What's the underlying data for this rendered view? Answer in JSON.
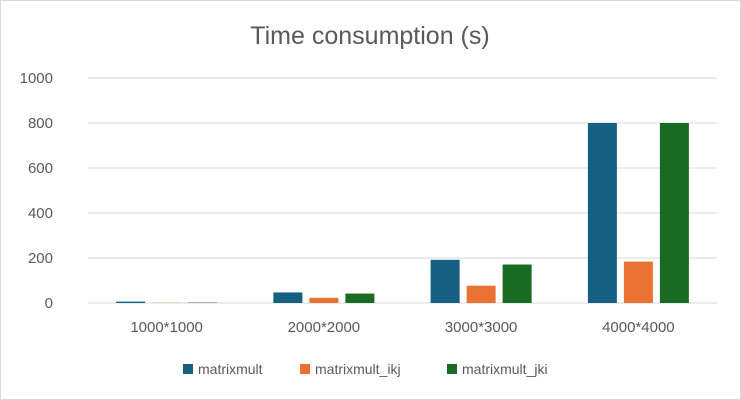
{
  "chart_data": {
    "type": "bar",
    "title": "Time consumption (s)",
    "categories": [
      "1000*1000",
      "2000*2000",
      "3000*3000",
      "4000*4000"
    ],
    "series": [
      {
        "name": "matrixmult",
        "values": [
          6,
          47,
          192,
          800
        ],
        "color": "#156082"
      },
      {
        "name": "matrixmult_ikj",
        "values": [
          1,
          23,
          77,
          184
        ],
        "color": "#e97132"
      },
      {
        "name": "matrixmult_jki",
        "values": [
          2,
          42,
          171,
          800
        ],
        "color": "#196b24"
      }
    ],
    "yticks": [
      "0",
      "200",
      "400",
      "600",
      "800",
      "1000"
    ],
    "ylim": [
      0,
      1000
    ],
    "grid": true,
    "legend_position": "bottom"
  }
}
